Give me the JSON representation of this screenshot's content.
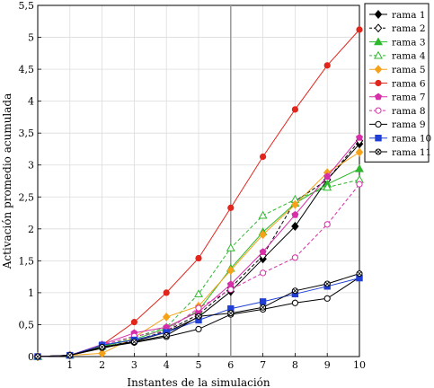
{
  "chart_data": {
    "type": "line",
    "xlabel": "Instantes de la simulación",
    "ylabel": "Activación promedio acumulada",
    "xlim": [
      0,
      10
    ],
    "ylim": [
      0,
      5.5
    ],
    "x_ticks": [
      "0",
      "1",
      "2",
      "3",
      "4",
      "5",
      "6",
      "7",
      "8",
      "9",
      "10"
    ],
    "x_tick_display": [
      "",
      "1",
      "2",
      "3",
      "4",
      "5",
      "6",
      "7",
      "8",
      "9",
      "10"
    ],
    "y_ticks": [
      "0",
      "0,5",
      "1",
      "1,5",
      "2",
      "2,5",
      "3",
      "3,5",
      "4",
      "4,5",
      "5",
      "5,5"
    ],
    "grid": true,
    "vertical_marker_x": 6,
    "legend_position": "top-right, outside plot",
    "x": [
      0,
      1,
      2,
      3,
      4,
      5,
      6,
      7,
      8,
      9,
      10
    ],
    "series": [
      {
        "name": "rama 1",
        "color": "#000000",
        "dash": "solid",
        "marker": "diamond-filled",
        "values": [
          0,
          0.02,
          0.13,
          0.24,
          0.38,
          0.62,
          1.02,
          1.53,
          2.04,
          2.77,
          3.33
        ]
      },
      {
        "name": "rama 2",
        "color": "#000000",
        "dash": "dashed",
        "marker": "diamond-open",
        "values": [
          0,
          0.02,
          0.14,
          0.25,
          0.4,
          0.66,
          1.08,
          1.58,
          2.43,
          2.77,
          3.38
        ]
      },
      {
        "name": "rama 3",
        "color": "#2db82d",
        "dash": "solid",
        "marker": "triangle-filled",
        "values": [
          0,
          0.02,
          0.16,
          0.27,
          0.44,
          0.72,
          1.38,
          1.95,
          2.4,
          2.7,
          2.94
        ]
      },
      {
        "name": "rama 4",
        "color": "#2db82d",
        "dash": "dashed",
        "marker": "triangle-open",
        "values": [
          0,
          0.02,
          0.16,
          0.3,
          0.46,
          0.98,
          1.7,
          2.21,
          2.46,
          2.65,
          2.77
        ]
      },
      {
        "name": "rama 5",
        "color": "#f5a21b",
        "dash": "solid",
        "marker": "diamond-filled",
        "values": [
          0,
          0.02,
          0.05,
          0.3,
          0.62,
          0.79,
          1.35,
          1.91,
          2.38,
          2.88,
          3.2
        ]
      },
      {
        "name": "rama 6",
        "color": "#e0261d",
        "dash": "solid",
        "marker": "circle-filled",
        "values": [
          0,
          0.02,
          0.18,
          0.54,
          1.0,
          1.54,
          2.33,
          3.13,
          3.87,
          4.56,
          5.12
        ]
      },
      {
        "name": "rama 7",
        "color": "#d62fa8",
        "dash": "solid",
        "marker": "pentagon-filled",
        "values": [
          0,
          0.02,
          0.19,
          0.37,
          0.46,
          0.7,
          1.13,
          1.64,
          2.22,
          2.82,
          3.43
        ]
      },
      {
        "name": "rama 8",
        "color": "#d62fa8",
        "dash": "dashed",
        "marker": "circle-open",
        "values": [
          0,
          0.02,
          0.18,
          0.32,
          0.4,
          0.76,
          1.05,
          1.31,
          1.55,
          2.07,
          2.7
        ]
      },
      {
        "name": "rama 9",
        "color": "#000000",
        "dash": "solid",
        "marker": "circle-open",
        "values": [
          0,
          0.02,
          0.14,
          0.22,
          0.31,
          0.43,
          0.66,
          0.74,
          0.84,
          0.91,
          1.24
        ]
      },
      {
        "name": "rama 10",
        "color": "#1f3fd6",
        "dash": "solid",
        "marker": "square-filled",
        "values": [
          0,
          0.02,
          0.18,
          0.26,
          0.38,
          0.57,
          0.75,
          0.86,
          0.98,
          1.1,
          1.23
        ]
      },
      {
        "name": "rama 11",
        "color": "#000000",
        "dash": "solid",
        "marker": "circle-cross",
        "values": [
          0,
          0.02,
          0.15,
          0.23,
          0.33,
          0.63,
          0.68,
          0.77,
          1.03,
          1.14,
          1.3
        ]
      }
    ]
  }
}
